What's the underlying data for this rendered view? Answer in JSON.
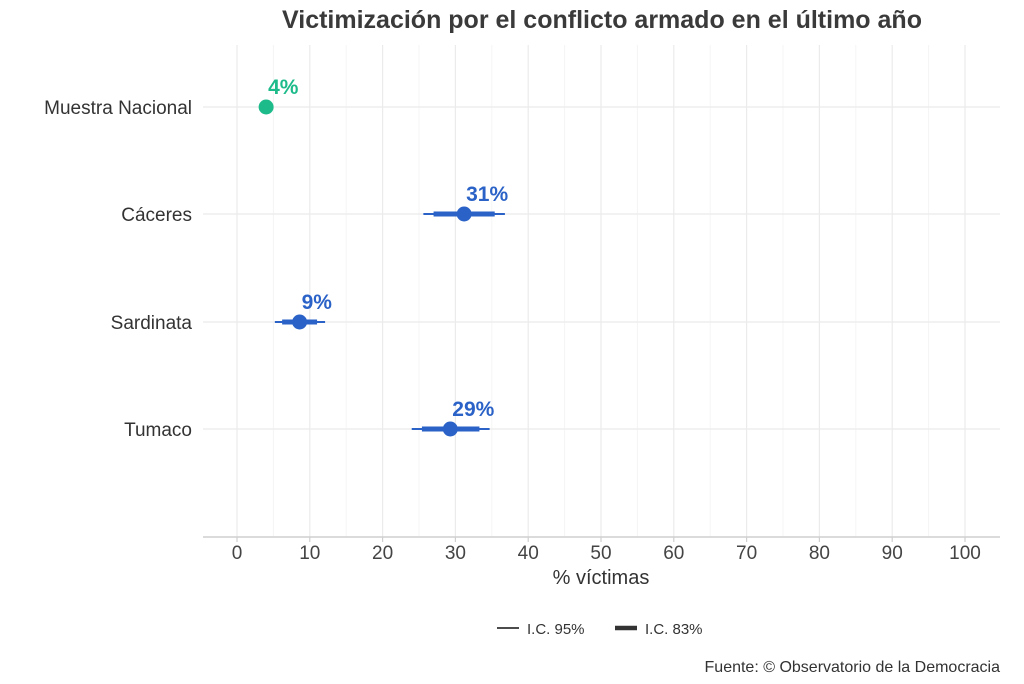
{
  "chart_data": {
    "type": "scatter",
    "title": "Victimización por el conflicto armado en el último año",
    "xlabel": "% víctimas",
    "ylabel": "",
    "xlim": [
      0,
      100
    ],
    "xticks": [
      0,
      10,
      20,
      30,
      40,
      50,
      60,
      70,
      80,
      90,
      100
    ],
    "grid": true,
    "legend_position": "bottom",
    "legend": [
      {
        "name": "I.C. 95%",
        "style": "thin-line"
      },
      {
        "name": "I.C. 83%",
        "style": "thick-line"
      }
    ],
    "caption": "Fuente: © Observatorio de la Democracia",
    "points": [
      {
        "category": "Muestra Nacional",
        "value": 4,
        "label": "4%",
        "ci95": [
          3.6,
          4.4
        ],
        "ci83": [
          3.7,
          4.3
        ],
        "color": "#1dba8a"
      },
      {
        "category": "Cáceres",
        "value": 31.2,
        "label": "31%",
        "ci95": [
          25.6,
          36.8
        ],
        "ci83": [
          27.0,
          35.4
        ],
        "color": "#2a62c7"
      },
      {
        "category": "Sardinata",
        "value": 8.6,
        "label": "9%",
        "ci95": [
          5.2,
          12.1
        ],
        "ci83": [
          6.2,
          11.0
        ],
        "color": "#2a62c7"
      },
      {
        "category": "Tumaco",
        "value": 29.3,
        "label": "29%",
        "ci95": [
          24.0,
          34.7
        ],
        "ci83": [
          25.4,
          33.3
        ],
        "color": "#2a62c7"
      }
    ]
  }
}
